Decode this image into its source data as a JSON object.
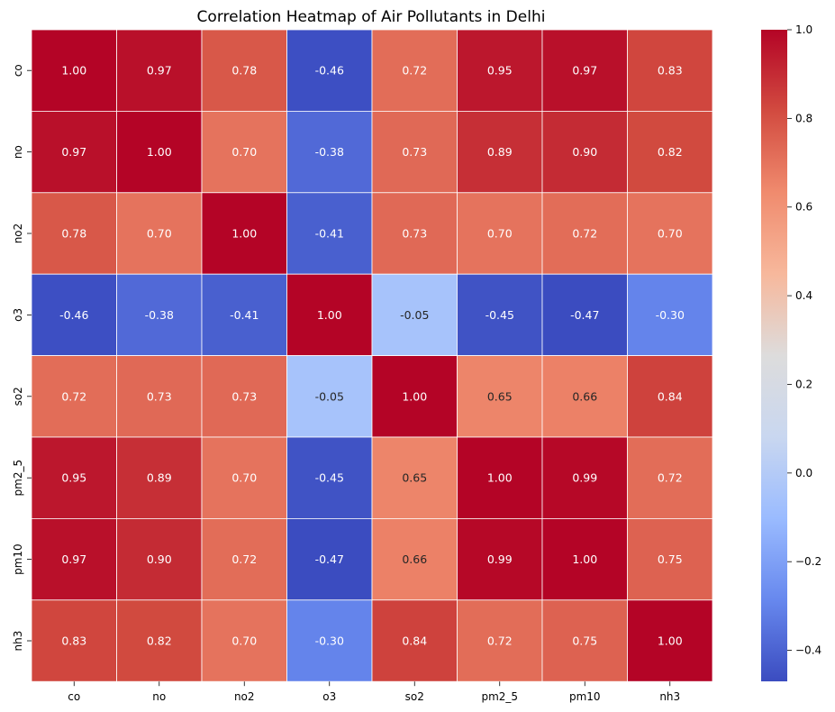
{
  "chart_data": {
    "type": "heatmap",
    "title": "Correlation Heatmap of Air Pollutants in Delhi",
    "xlabel": "",
    "ylabel": "",
    "x_categories": [
      "co",
      "no",
      "no2",
      "o3",
      "so2",
      "pm2_5",
      "pm10",
      "nh3"
    ],
    "y_categories": [
      "co",
      "no",
      "no2",
      "o3",
      "so2",
      "pm2_5",
      "pm10",
      "nh3"
    ],
    "values": [
      [
        1.0,
        0.97,
        0.78,
        -0.46,
        0.72,
        0.95,
        0.97,
        0.83
      ],
      [
        0.97,
        1.0,
        0.7,
        -0.38,
        0.73,
        0.89,
        0.9,
        0.82
      ],
      [
        0.78,
        0.7,
        1.0,
        -0.41,
        0.73,
        0.7,
        0.72,
        0.7
      ],
      [
        -0.46,
        -0.38,
        -0.41,
        1.0,
        -0.05,
        -0.45,
        -0.47,
        -0.3
      ],
      [
        0.72,
        0.73,
        0.73,
        -0.05,
        1.0,
        0.65,
        0.66,
        0.84
      ],
      [
        0.95,
        0.89,
        0.7,
        -0.45,
        0.65,
        1.0,
        0.99,
        0.72
      ],
      [
        0.97,
        0.9,
        0.72,
        -0.47,
        0.66,
        0.99,
        1.0,
        0.75
      ],
      [
        0.83,
        0.82,
        0.7,
        -0.3,
        0.84,
        0.72,
        0.75,
        1.0
      ]
    ],
    "annotation_format": "2 decimals",
    "colormap": "coolwarm",
    "colormap_stops": [
      "#3b4cc0",
      "#6788ee",
      "#9abbff",
      "#c9d7f0",
      "#dddcdc",
      "#f7b89c",
      "#f08b6e",
      "#d24b40",
      "#b40426"
    ],
    "vmin": -0.47,
    "vmax": 1.0,
    "cell_border_color": "#ffffff",
    "colorbar": {
      "position": "right",
      "ticks": [
        1.0,
        0.8,
        0.6,
        0.4,
        0.2,
        0.0,
        -0.2,
        -0.4
      ],
      "tick_labels": [
        "1.0",
        "0.8",
        "0.6",
        "0.4",
        "0.2",
        "0.0",
        "−0.2",
        "−0.4"
      ]
    },
    "grid": false,
    "legend": "none"
  }
}
